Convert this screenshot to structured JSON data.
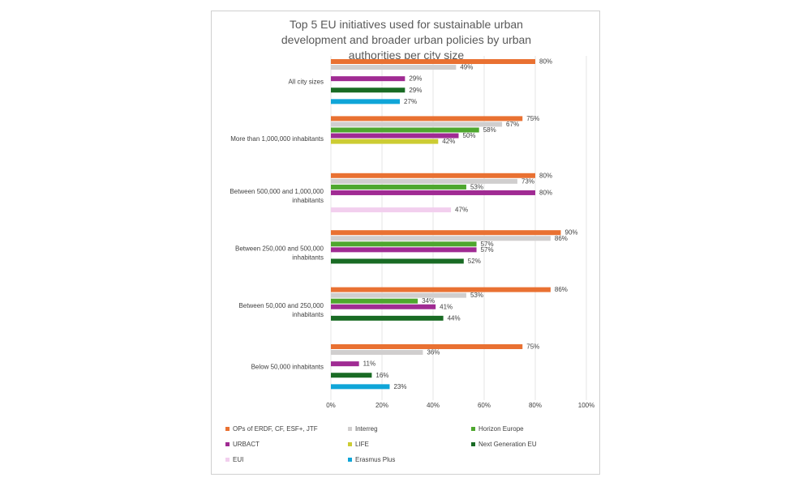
{
  "chart_data": {
    "type": "bar",
    "orientation": "horizontal",
    "title": "Top 5 EU initiatives used for sustainable urban development and broader urban policies by urban authorities per city size",
    "title_lines": [
      "Top 5 EU initiatives used for sustainable urban",
      "development and broader urban policies by urban",
      "authorities per city size"
    ],
    "xlim": [
      0,
      100
    ],
    "x_ticks": [
      "0%",
      "20%",
      "40%",
      "60%",
      "80%",
      "100%"
    ],
    "grid": true,
    "legend_position": "bottom",
    "series": [
      {
        "name": "OPs  of ERDF, CF, ESF+, JTF",
        "color": "#e97132"
      },
      {
        "name": "Interreg",
        "color": "#d0cece"
      },
      {
        "name": "Horizon Europe",
        "color": "#4ea72e"
      },
      {
        "name": "URBACT",
        "color": "#a02b93"
      },
      {
        "name": "LIFE",
        "color": "#cccc33"
      },
      {
        "name": "Next Generation EU",
        "color": "#196b24"
      },
      {
        "name": "EUI",
        "color": "#f2cfee"
      },
      {
        "name": "Erasmus Plus",
        "color": "#0fa5d8"
      }
    ],
    "categories": [
      {
        "lines": [
          "All city sizes"
        ],
        "values": [
          80,
          49,
          null,
          29,
          null,
          29,
          null,
          27
        ],
        "labels": [
          "80%",
          "49%",
          "",
          "29%",
          "",
          "29%",
          "",
          "27%"
        ]
      },
      {
        "lines": [
          "More than 1,000,000 inhabitants"
        ],
        "values": [
          75,
          67,
          58,
          50,
          42,
          null,
          null,
          null
        ],
        "labels": [
          "75%",
          "67%",
          "58%",
          "50%",
          "42%",
          "",
          "",
          ""
        ]
      },
      {
        "lines": [
          "Between 500,000 and 1,000,000",
          "inhabitants"
        ],
        "values": [
          80,
          73,
          53,
          80,
          null,
          null,
          47,
          null
        ],
        "labels": [
          "80%",
          "73%",
          "53%",
          "80%",
          "",
          "",
          "47%",
          ""
        ]
      },
      {
        "lines": [
          "Between 250,000 and 500,000",
          "inhabitants"
        ],
        "values": [
          90,
          86,
          57,
          57,
          null,
          52,
          null,
          null
        ],
        "labels": [
          "90%",
          "86%",
          "57%",
          "57%",
          "",
          "52%",
          "",
          ""
        ]
      },
      {
        "lines": [
          "Between 50,000 and 250,000",
          "inhabitants"
        ],
        "values": [
          86,
          53,
          34,
          41,
          null,
          44,
          null,
          null
        ],
        "labels": [
          "86%",
          "53%",
          "34%",
          "41%",
          "",
          "44%",
          "",
          ""
        ]
      },
      {
        "lines": [
          "Below 50,000 inhabitants"
        ],
        "values": [
          75,
          36,
          null,
          11,
          null,
          16,
          null,
          23
        ],
        "labels": [
          "75%",
          "36%",
          "",
          "11%",
          "",
          "16%",
          "",
          "23%"
        ]
      }
    ]
  }
}
